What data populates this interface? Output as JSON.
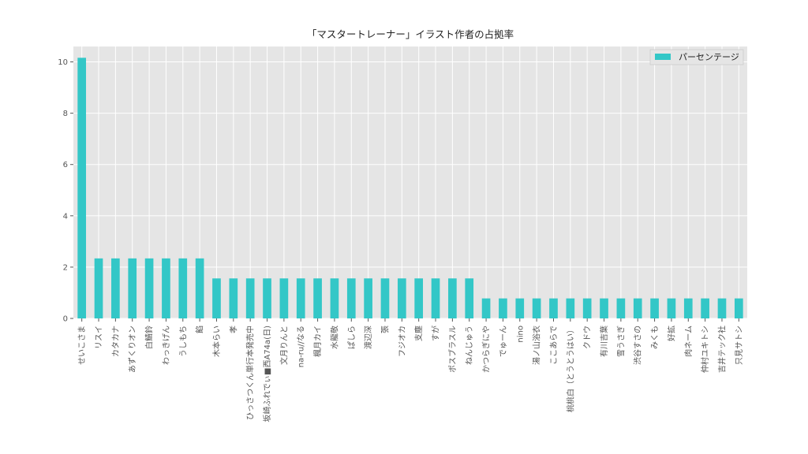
{
  "chart_data": {
    "type": "bar",
    "title": "「マスタートレーナー」イラスト作者の占拠率",
    "xlabel": "",
    "ylabel": "",
    "ylim": [
      0,
      10.6
    ],
    "yticks": [
      0,
      2,
      4,
      6,
      8,
      10
    ],
    "grid": true,
    "legend_position": "top-right",
    "bar_color": "#33c7c7",
    "background_color": "#e5e5e5",
    "categories": [
      "せいこさま",
      "リスイ",
      "カタカナ",
      "あずくりオン",
      "白鯖鈴",
      "わっきげん",
      "うしもち",
      "餡",
      "木本らい",
      "孝",
      "ひっさつくん単行本発売中",
      "坂崎ふれでぃ■西A74a(日)",
      "文月りんと",
      "na-ru//なる",
      "楓月カイ",
      "水龍敬",
      "ぱしら",
      "渡辺深",
      "張",
      "フジオカ",
      "支塵",
      "すが",
      "ポスブラスル",
      "ねんじゅう",
      "かつらぎにや",
      "でゅーん",
      "nino",
      "湯ノ山浴衣",
      "ここあらで",
      "桃桃白（とうとうはい）",
      "クドウ",
      "有川吉葉",
      "雪うさぎ",
      "渋谷すさの",
      "みくも",
      "好拡",
      "肉ネーム",
      "仲村ユキトシ",
      "吉井テック社",
      "只見サトシ"
    ],
    "series": [
      {
        "name": "パーセンテージ",
        "values": [
          10.16,
          2.34,
          2.34,
          2.34,
          2.34,
          2.34,
          2.34,
          2.34,
          1.56,
          1.56,
          1.56,
          1.56,
          1.56,
          1.56,
          1.56,
          1.56,
          1.56,
          1.56,
          1.56,
          1.56,
          1.56,
          1.56,
          1.56,
          1.56,
          0.78,
          0.78,
          0.78,
          0.78,
          0.78,
          0.78,
          0.78,
          0.78,
          0.78,
          0.78,
          0.78,
          0.78,
          0.78,
          0.78,
          0.78,
          0.78
        ]
      }
    ]
  }
}
